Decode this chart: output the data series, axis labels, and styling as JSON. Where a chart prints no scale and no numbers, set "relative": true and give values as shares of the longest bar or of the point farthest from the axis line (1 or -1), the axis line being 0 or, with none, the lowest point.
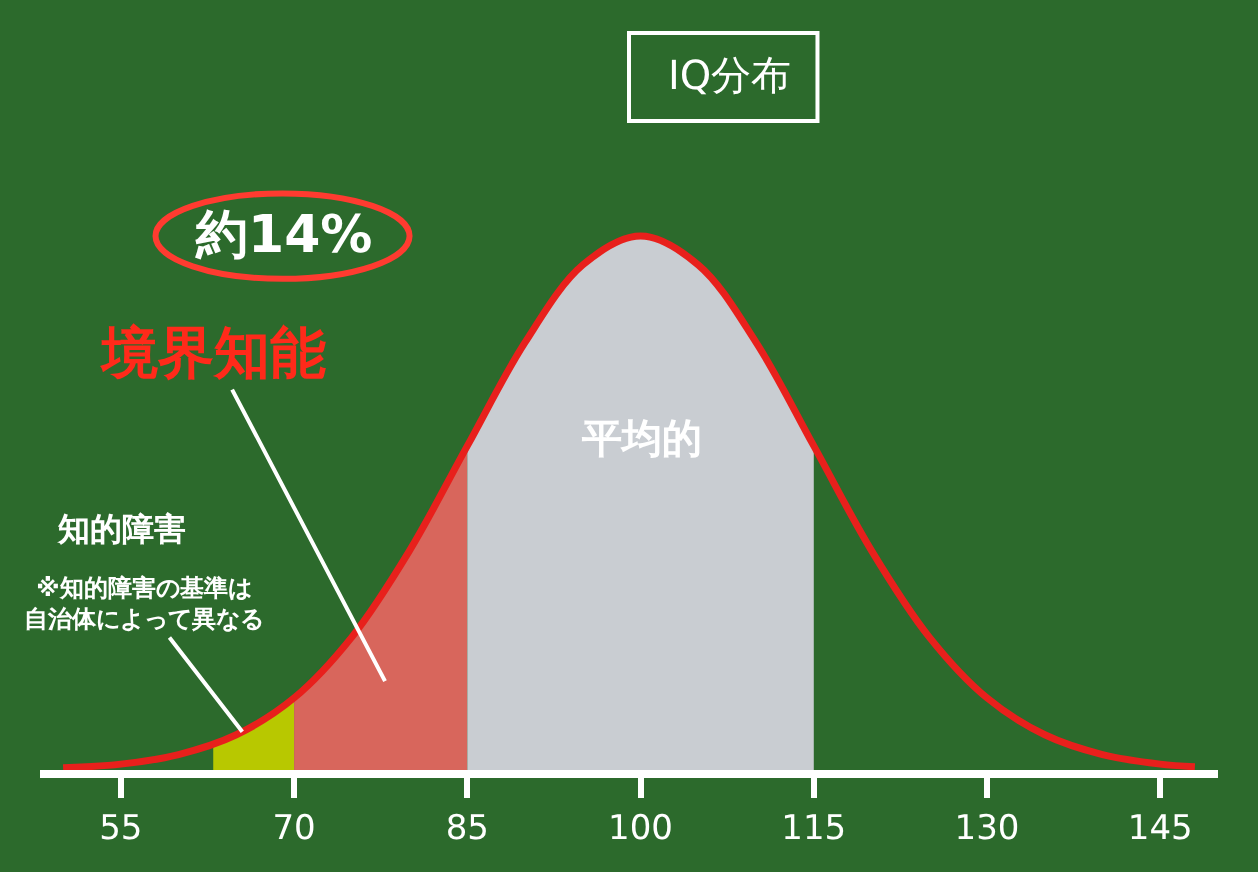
{
  "chart_data": {
    "type": "line",
    "title": "IQ分布",
    "relative": true,
    "grid": false,
    "marker": "none",
    "line_style": "solid",
    "tick_labels": "x",
    "x": [
      50,
      55,
      60,
      65,
      70,
      75,
      80,
      85,
      90,
      95,
      100,
      105,
      110,
      115,
      120,
      125,
      130,
      135,
      140,
      145,
      148
    ],
    "series": [
      {
        "type": "area",
        "color": "#b8c800",
        "x": [
          63,
          65,
          70
        ],
        "values": [
          0.05,
          0.066,
          0.135
        ]
      },
      {
        "type": "area",
        "color": "#d8665c",
        "x": [
          70,
          75,
          80,
          85
        ],
        "values": [
          0.135,
          0.249,
          0.411,
          0.607
        ]
      },
      {
        "type": "area",
        "color": "#c9cdd2",
        "x": [
          85,
          90,
          95,
          100,
          105,
          110,
          115
        ],
        "values": [
          0.607,
          0.801,
          0.946,
          1,
          0.946,
          0.801,
          0.607
        ]
      },
      {
        "color": "#e8201c",
        "values": [
          0.004,
          0.011,
          0.029,
          0.066,
          0.135,
          0.249,
          0.411,
          0.607,
          0.801,
          0.946,
          1,
          0.946,
          0.801,
          0.607,
          0.411,
          0.249,
          0.135,
          0.066,
          0.029,
          0.011,
          0.006
        ]
      }
    ],
    "xlim": [
      48,
      150
    ],
    "xticks": [
      55,
      70,
      85,
      100,
      115,
      130,
      145
    ],
    "annotations": [
      "約14%",
      "境界知能",
      "平均的",
      "知的障害",
      "※知的障害の基準は自治体によって異なる"
    ]
  }
}
